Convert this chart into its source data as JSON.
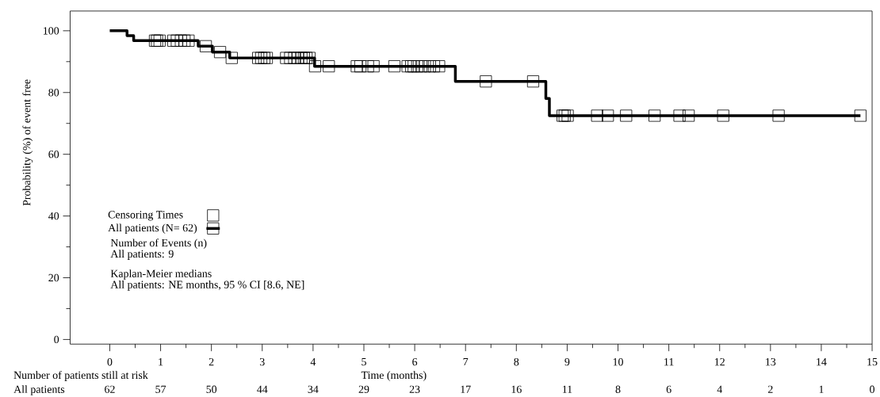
{
  "chart_data": {
    "type": "step",
    "xlabel": "Time (months)",
    "ylabel": "Probability (%) of event free",
    "xlim": [
      -0.78,
      15
    ],
    "ylim": [
      -1.5,
      106.4
    ],
    "xticks": [
      0,
      {
        "value": 0.5,
        "label": null
      },
      1,
      {
        "value": 1.5,
        "label": null
      },
      2,
      {
        "value": 2.5,
        "label": null
      },
      3,
      {
        "value": 3.5,
        "label": null
      },
      4,
      {
        "value": 4.5,
        "label": null
      },
      5,
      {
        "value": 5.5,
        "label": null
      },
      6,
      {
        "value": 6.5,
        "label": null
      },
      7,
      {
        "value": 7.5,
        "label": null
      },
      8,
      {
        "value": 8.5,
        "label": null
      },
      9,
      {
        "value": 9.5,
        "label": null
      },
      10,
      {
        "value": 10.5,
        "label": null
      },
      11,
      {
        "value": 11.5,
        "label": null
      },
      12,
      {
        "value": 12.5,
        "label": null
      },
      13,
      {
        "value": 13.5,
        "label": null
      },
      14,
      {
        "value": 14.5,
        "label": null
      },
      15
    ],
    "yticks": [
      0,
      {
        "value": 10,
        "label": null
      },
      20,
      {
        "value": 30,
        "label": null
      },
      40,
      {
        "value": 50,
        "label": null
      },
      60,
      {
        "value": 70,
        "label": null
      },
      80,
      {
        "value": 90,
        "label": null
      },
      100
    ],
    "legend": "left",
    "series": [
      {
        "name": "Censoring Times",
        "type": "scatter",
        "marker": "square",
        "color": "#000000",
        "x": [
          0.89,
          0.93,
          0.98,
          1.25,
          1.32,
          1.4,
          1.47,
          1.55,
          1.89,
          2.17,
          2.4,
          2.92,
          2.98,
          3.04,
          3.09,
          3.47,
          3.55,
          3.63,
          3.7,
          3.77,
          3.82,
          3.87,
          3.93,
          4.04,
          4.31,
          4.86,
          4.93,
          5.08,
          5.19,
          5.6,
          5.86,
          5.93,
          5.98,
          6.05,
          6.13,
          6.2,
          6.3,
          6.38,
          6.48,
          7.4,
          8.33,
          8.91,
          8.95,
          9.01,
          9.59,
          9.8,
          10.16,
          10.72,
          11.21,
          11.39,
          12.07,
          13.16,
          14.77
        ],
        "values": [
          96.8,
          96.8,
          96.8,
          96.8,
          96.8,
          96.8,
          96.8,
          96.8,
          95.0,
          93.1,
          91.2,
          91.2,
          91.2,
          91.2,
          91.2,
          91.2,
          91.2,
          91.2,
          91.2,
          91.2,
          91.2,
          91.2,
          91.2,
          88.5,
          88.5,
          88.5,
          88.5,
          88.5,
          88.5,
          88.5,
          88.5,
          88.5,
          88.5,
          88.5,
          88.5,
          88.5,
          88.5,
          88.5,
          88.5,
          83.6,
          83.6,
          72.5,
          72.5,
          72.5,
          72.5,
          72.5,
          72.5,
          72.5,
          72.5,
          72.5,
          72.5,
          72.5,
          72.5
        ]
      },
      {
        "name": "All patients (N= 62)",
        "color": "#000000",
        "x": [
          0,
          0.34,
          0.47,
          1.74,
          2.02,
          2.36,
          4.03,
          6.8,
          8.58,
          8.65,
          14.77
        ],
        "values": [
          100,
          98.4,
          96.8,
          95.0,
          93.1,
          91.2,
          88.5,
          83.6,
          78.1,
          72.5,
          72.5
        ]
      }
    ],
    "annotations": [
      "Number of Events (n)",
      "All patients: 9",
      "Kaplan-Meier medians",
      "All patients: NE months, 95 % CI [8.6, NE]",
      "Number of patients still at risk",
      "All patients",
      "62",
      "57",
      "50",
      "44",
      "34",
      "29",
      "23",
      "17",
      "16",
      "11",
      "8",
      "6",
      "4",
      "2",
      "1",
      "0"
    ]
  }
}
